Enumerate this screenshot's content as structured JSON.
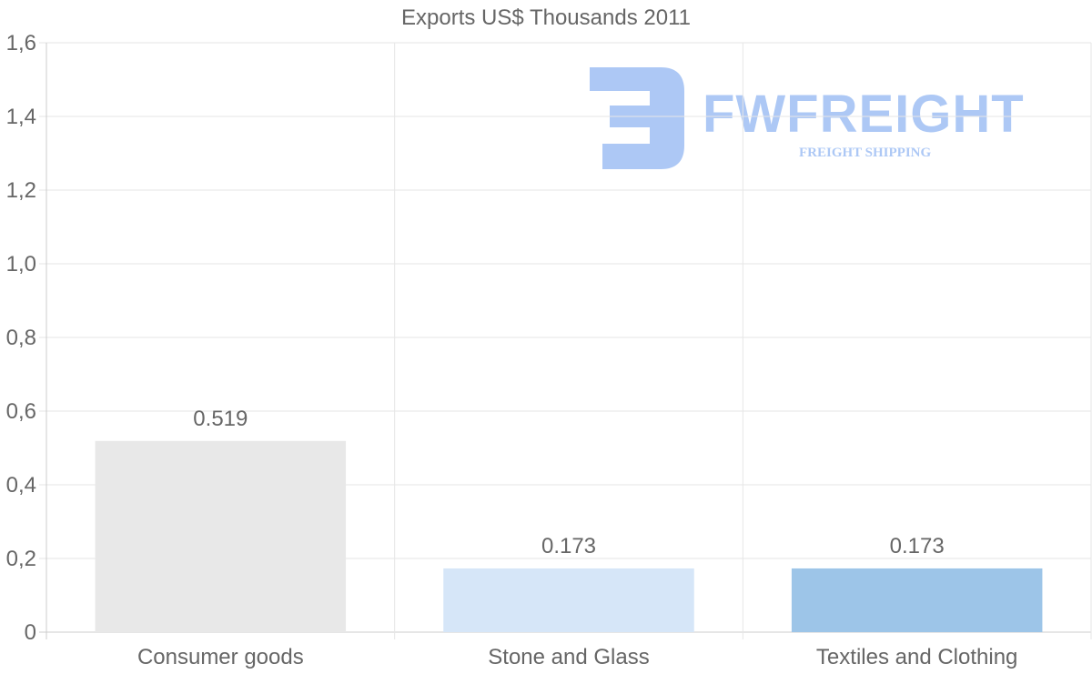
{
  "chart_data": {
    "type": "bar",
    "title": "Exports US$ Thousands 2011",
    "categories": [
      "Consumer goods",
      "Stone and Glass",
      "Textiles and Clothing"
    ],
    "values": [
      0.519,
      0.173,
      0.173
    ],
    "data_labels": [
      "0.519",
      "0.173",
      "0.173"
    ],
    "bar_colors": [
      "#e8e8e8",
      "#d6e6f8",
      "#9dc5e8"
    ],
    "ylim": [
      0,
      1.6
    ],
    "yticks": [
      0,
      0.2,
      0.4,
      0.6,
      0.8,
      1.0,
      1.2,
      1.4,
      1.6
    ],
    "ytick_labels": [
      "0",
      "0,2",
      "0,4",
      "0,6",
      "0,8",
      "1,0",
      "1,2",
      "1,4",
      "1,6"
    ],
    "xlabel": "",
    "ylabel": "",
    "grid": true
  },
  "watermark": {
    "brand": "FWFREIGHT",
    "subtitle": "FREIGHT SHIPPING",
    "color": "#a9c6f5"
  },
  "colors": {
    "grid": "#e6e6e6",
    "axis": "#cccccc",
    "text": "#666666"
  }
}
